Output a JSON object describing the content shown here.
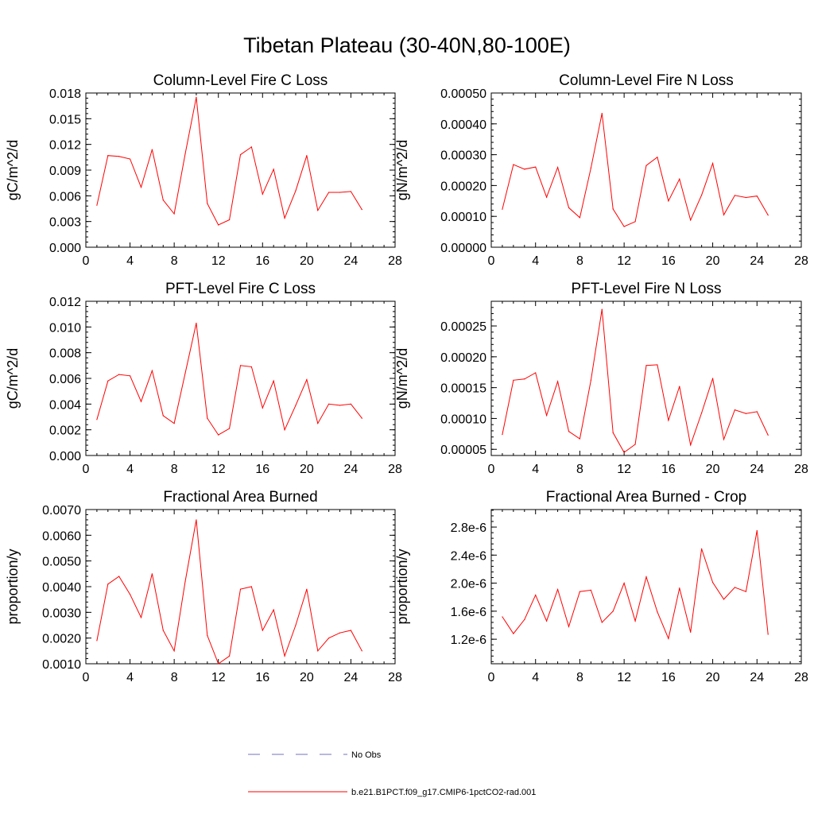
{
  "figure": {
    "title": "Tibetan Plateau (30-40N,80-100E)"
  },
  "legend": {
    "items": [
      {
        "label": "No Obs",
        "color": "#7070c0",
        "style": "dashed"
      },
      {
        "label": "b.e21.B1PCT.f09_g17.CMIP6-1pctCO2-rad.001",
        "color": "#ff0000",
        "style": "solid"
      }
    ]
  },
  "chart_data": [
    {
      "type": "line",
      "title": "Column-Level Fire C Loss",
      "ylabel": "gC/m^2/d",
      "xlim": [
        0,
        28
      ],
      "xticks": [
        "0",
        "4",
        "8",
        "12",
        "16",
        "20",
        "24",
        "28"
      ],
      "ylim": [
        0,
        0.018
      ],
      "yticks": [
        "0.000",
        "0.003",
        "0.006",
        "0.009",
        "0.012",
        "0.015",
        "0.018"
      ],
      "x": [
        1,
        2,
        3,
        4,
        5,
        6,
        7,
        8,
        9,
        10,
        11,
        12,
        13,
        14,
        15,
        16,
        17,
        18,
        19,
        20,
        21,
        22,
        23,
        24,
        25
      ],
      "series": [
        {
          "color": "#ff0000",
          "values": [
            0.0049,
            0.0107,
            0.0106,
            0.0103,
            0.007,
            0.0114,
            0.0055,
            0.0039,
            0.0109,
            0.0175,
            0.0051,
            0.0026,
            0.0032,
            0.0108,
            0.0117,
            0.0062,
            0.0091,
            0.0034,
            0.0066,
            0.0107,
            0.0043,
            0.0064,
            0.0064,
            0.0065,
            0.0044
          ]
        }
      ]
    },
    {
      "type": "line",
      "title": "Column-Level Fire N Loss",
      "ylabel": "gN/m^2/d",
      "xlim": [
        0,
        28
      ],
      "xticks": [
        "0",
        "4",
        "8",
        "12",
        "16",
        "20",
        "24",
        "28"
      ],
      "ylim": [
        0,
        0.0005
      ],
      "yticks": [
        "0.00000",
        "0.00010",
        "0.00020",
        "0.00030",
        "0.00040",
        "0.00050"
      ],
      "x": [
        1,
        2,
        3,
        4,
        5,
        6,
        7,
        8,
        9,
        10,
        11,
        12,
        13,
        14,
        15,
        16,
        17,
        18,
        19,
        20,
        21,
        22,
        23,
        24,
        25
      ],
      "series": [
        {
          "color": "#ff0000",
          "values": [
            0.000123,
            0.000268,
            0.000253,
            0.00026,
            0.000162,
            0.000259,
            0.000128,
            9.6e-05,
            0.000257,
            0.000434,
            0.000124,
            6.7e-05,
            8.3e-05,
            0.000265,
            0.000292,
            0.00015,
            0.000221,
            8.8e-05,
            0.000169,
            0.000272,
            0.000105,
            0.000168,
            0.000161,
            0.000166,
            0.000104
          ]
        }
      ]
    },
    {
      "type": "line",
      "title": "PFT-Level Fire C Loss",
      "ylabel": "gC/m^2/d",
      "xlim": [
        0,
        28
      ],
      "xticks": [
        "0",
        "4",
        "8",
        "12",
        "16",
        "20",
        "24",
        "28"
      ],
      "ylim": [
        0,
        0.012
      ],
      "yticks": [
        "0.000",
        "0.002",
        "0.004",
        "0.006",
        "0.008",
        "0.010",
        "0.012"
      ],
      "x": [
        1,
        2,
        3,
        4,
        5,
        6,
        7,
        8,
        9,
        10,
        11,
        12,
        13,
        14,
        15,
        16,
        17,
        18,
        19,
        20,
        21,
        22,
        23,
        24,
        25
      ],
      "series": [
        {
          "color": "#ff0000",
          "values": [
            0.0028,
            0.0058,
            0.0063,
            0.0062,
            0.0042,
            0.0066,
            0.0031,
            0.0025,
            0.0064,
            0.0103,
            0.0029,
            0.0016,
            0.0021,
            0.007,
            0.0069,
            0.0037,
            0.0058,
            0.002,
            0.0039,
            0.0059,
            0.0025,
            0.004,
            0.0039,
            0.004,
            0.0029
          ]
        }
      ]
    },
    {
      "type": "line",
      "title": "PFT-Level Fire N Loss",
      "ylabel": "gN/m^2/d",
      "xlim": [
        0,
        28
      ],
      "xticks": [
        "0",
        "4",
        "8",
        "12",
        "16",
        "20",
        "24",
        "28"
      ],
      "ylim": [
        4e-05,
        0.00029
      ],
      "yticks": [
        "0.00005",
        "0.00010",
        "0.00015",
        "0.00020",
        "0.00025"
      ],
      "ytick_values": [
        5e-05,
        0.0001,
        0.00015,
        0.0002,
        0.00025
      ],
      "x": [
        1,
        2,
        3,
        4,
        5,
        6,
        7,
        8,
        9,
        10,
        11,
        12,
        13,
        14,
        15,
        16,
        17,
        18,
        19,
        20,
        21,
        22,
        23,
        24,
        25
      ],
      "series": [
        {
          "color": "#ff0000",
          "values": [
            7.4e-05,
            0.000162,
            0.000164,
            0.000174,
            0.000105,
            0.00016,
            7.9e-05,
            6.7e-05,
            0.000162,
            0.000277,
            7.7e-05,
            4.5e-05,
            5.8e-05,
            0.000186,
            0.000187,
            9.7e-05,
            0.000152,
            5.7e-05,
            0.000109,
            0.000165,
            6.6e-05,
            0.000114,
            0.000108,
            0.000111,
            7.3e-05
          ]
        }
      ]
    },
    {
      "type": "line",
      "title": "Fractional Area Burned",
      "ylabel": "proportion/y",
      "xlim": [
        0,
        28
      ],
      "xticks": [
        "0",
        "4",
        "8",
        "12",
        "16",
        "20",
        "24",
        "28"
      ],
      "ylim": [
        0.001,
        0.007
      ],
      "yticks": [
        "0.0010",
        "0.0020",
        "0.0030",
        "0.0040",
        "0.0050",
        "0.0060",
        "0.0070"
      ],
      "x": [
        1,
        2,
        3,
        4,
        5,
        6,
        7,
        8,
        9,
        10,
        11,
        12,
        13,
        14,
        15,
        16,
        17,
        18,
        19,
        20,
        21,
        22,
        23,
        24,
        25
      ],
      "series": [
        {
          "color": "#ff0000",
          "values": [
            0.0019,
            0.0041,
            0.0044,
            0.0037,
            0.0028,
            0.0045,
            0.0023,
            0.0015,
            0.0042,
            0.0066,
            0.0021,
            0.001,
            0.0013,
            0.0039,
            0.004,
            0.0023,
            0.0031,
            0.0013,
            0.0025,
            0.0039,
            0.0015,
            0.002,
            0.0022,
            0.0023,
            0.0015
          ]
        }
      ]
    },
    {
      "type": "line",
      "title": "Fractional Area Burned - Crop",
      "ylabel": "proportion/y",
      "xlim": [
        0,
        28
      ],
      "xticks": [
        "0",
        "4",
        "8",
        "12",
        "16",
        "20",
        "24",
        "28"
      ],
      "ylim": [
        8.5e-07,
        3.05e-06
      ],
      "yticks": [
        "1.2e-6",
        "1.6e-6",
        "2.0e-6",
        "2.4e-6",
        "2.8e-6"
      ],
      "ytick_values": [
        1.2e-06,
        1.6e-06,
        2e-06,
        2.4e-06,
        2.8e-06
      ],
      "x": [
        1,
        2,
        3,
        4,
        5,
        6,
        7,
        8,
        9,
        10,
        11,
        12,
        13,
        14,
        15,
        16,
        17,
        18,
        19,
        20,
        21,
        22,
        23,
        24,
        25
      ],
      "series": [
        {
          "color": "#ff0000",
          "values": [
            1.52e-06,
            1.28e-06,
            1.48e-06,
            1.83e-06,
            1.46e-06,
            1.91e-06,
            1.38e-06,
            1.88e-06,
            1.9e-06,
            1.44e-06,
            1.6e-06,
            2e-06,
            1.46e-06,
            2.09e-06,
            1.59e-06,
            1.21e-06,
            1.93e-06,
            1.3e-06,
            2.49e-06,
            2.01e-06,
            1.77e-06,
            1.94e-06,
            1.88e-06,
            2.75e-06,
            1.27e-06
          ]
        }
      ]
    }
  ]
}
